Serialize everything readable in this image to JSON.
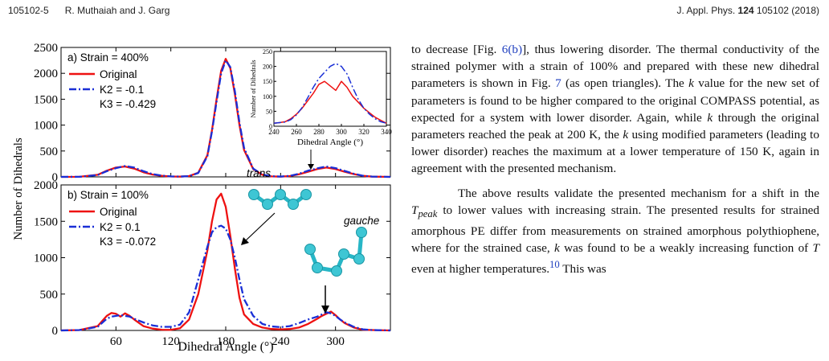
{
  "header": {
    "page_id": "105102-5",
    "authors": "R. Muthaiah and J. Garg",
    "journal": "J. Appl. Phys.",
    "volume": "124",
    "pages": "105102 (2018)"
  },
  "figure": {
    "shared_ylabel": "Number of Dihedrals",
    "shared_xlabel": "Dihedral Angle (°)",
    "x_ticks": [
      60,
      120,
      180,
      240,
      300
    ],
    "xlim": [
      0,
      360
    ]
  },
  "chart_data": [
    {
      "type": "line",
      "panel_label": "a) Strain = 400%",
      "ylim": [
        0,
        2500
      ],
      "yticks": [
        0,
        500,
        1000,
        1500,
        2000,
        2500
      ],
      "legend": {
        "placement": "top-left",
        "entries": [
          "Original",
          "K2 = -0.1",
          "K3 = -0.429"
        ]
      },
      "x": [
        0,
        20,
        40,
        50,
        60,
        70,
        80,
        90,
        100,
        110,
        120,
        130,
        140,
        150,
        160,
        165,
        170,
        175,
        180,
        185,
        190,
        195,
        200,
        210,
        220,
        230,
        240,
        250,
        260,
        270,
        280,
        290,
        300,
        310,
        320,
        330,
        340,
        360
      ],
      "series": [
        {
          "name": "Original",
          "color": "#ee1111",
          "dash": "solid",
          "values": [
            0,
            2,
            40,
            120,
            180,
            200,
            160,
            90,
            45,
            20,
            8,
            5,
            15,
            80,
            420,
            900,
            1500,
            2050,
            2280,
            2100,
            1600,
            1000,
            520,
            150,
            40,
            10,
            5,
            15,
            50,
            100,
            150,
            180,
            150,
            100,
            55,
            20,
            5,
            0
          ]
        },
        {
          "name": "K2 = -0.1",
          "color": "#1a2fd6",
          "dash": "dashdot",
          "values": [
            0,
            2,
            35,
            110,
            170,
            210,
            180,
            110,
            55,
            25,
            10,
            6,
            14,
            75,
            400,
            880,
            1450,
            2000,
            2250,
            2120,
            1650,
            1050,
            560,
            160,
            45,
            12,
            6,
            18,
            60,
            120,
            165,
            200,
            170,
            115,
            60,
            22,
            6,
            0
          ]
        }
      ]
    },
    {
      "type": "line",
      "role": "inset",
      "xlim": [
        240,
        340
      ],
      "x_ticks": [
        240,
        260,
        280,
        300,
        320,
        340
      ],
      "ylim": [
        0,
        250
      ],
      "yticks": [
        0,
        50,
        100,
        150,
        200,
        250
      ],
      "ylabel": "Number of Dihedrals",
      "xlabel": "Dihedral Angle (°)",
      "x": [
        240,
        245,
        250,
        255,
        260,
        265,
        270,
        275,
        280,
        285,
        290,
        295,
        300,
        305,
        310,
        315,
        320,
        325,
        330,
        335,
        340
      ],
      "series": [
        {
          "name": "Original",
          "color": "#ee1111",
          "dash": "solid",
          "values": [
            10,
            12,
            15,
            25,
            40,
            60,
            85,
            110,
            140,
            150,
            135,
            120,
            150,
            130,
            100,
            80,
            60,
            45,
            30,
            20,
            10
          ]
        },
        {
          "name": "K2 = -0.1",
          "color": "#1a2fd6",
          "dash": "dashdot",
          "values": [
            10,
            12,
            14,
            22,
            38,
            62,
            95,
            130,
            160,
            180,
            200,
            210,
            200,
            175,
            130,
            90,
            60,
            40,
            25,
            15,
            10
          ]
        }
      ]
    },
    {
      "type": "line",
      "panel_label": "b) Strain = 100%",
      "ylim": [
        0,
        2000
      ],
      "yticks": [
        0,
        500,
        1000,
        1500,
        2000
      ],
      "legend": {
        "placement": "top-left",
        "entries": [
          "Original",
          "K2 = 0.1",
          "K3 = -0.072"
        ]
      },
      "annotations": [
        "trans",
        "gauche"
      ],
      "x": [
        0,
        20,
        40,
        50,
        55,
        60,
        65,
        70,
        75,
        80,
        90,
        100,
        110,
        120,
        130,
        140,
        150,
        160,
        165,
        170,
        175,
        180,
        185,
        190,
        195,
        200,
        210,
        220,
        230,
        240,
        250,
        260,
        270,
        280,
        285,
        290,
        295,
        300,
        305,
        310,
        320,
        330,
        340,
        360
      ],
      "series": [
        {
          "name": "Original",
          "color": "#ee1111",
          "dash": "solid",
          "values": [
            0,
            5,
            60,
            200,
            240,
            230,
            190,
            235,
            200,
            150,
            60,
            25,
            10,
            8,
            30,
            150,
            500,
            1100,
            1500,
            1800,
            1880,
            1700,
            1300,
            850,
            450,
            220,
            90,
            40,
            20,
            15,
            20,
            40,
            90,
            160,
            200,
            230,
            260,
            210,
            150,
            100,
            40,
            10,
            5,
            0
          ]
        },
        {
          "name": "K2 = 0.1",
          "color": "#1a2fd6",
          "dash": "dashdot",
          "values": [
            0,
            5,
            50,
            160,
            190,
            200,
            210,
            200,
            190,
            160,
            110,
            70,
            50,
            50,
            80,
            250,
            700,
            1150,
            1350,
            1420,
            1440,
            1400,
            1250,
            1000,
            700,
            430,
            200,
            90,
            55,
            45,
            60,
            100,
            150,
            190,
            220,
            250,
            235,
            200,
            150,
            110,
            50,
            15,
            5,
            0
          ]
        }
      ]
    }
  ],
  "article": {
    "p1": [
      {
        "t": "to decrease [Fig. "
      },
      {
        "t": "6(b)",
        "ref": true
      },
      {
        "t": "], thus lowering disorder. The thermal conductivity of the strained polymer with a strain of 100% and prepared with these new dihedral parameters is shown in Fig. "
      },
      {
        "t": "7",
        "ref": true
      },
      {
        "t": " (as open triangles). The "
      },
      {
        "t": "k",
        "i": true
      },
      {
        "t": " value for the new set of parameters is found to be higher compared to the original COMPASS potential, as expected for a system with lower disorder. Again, while "
      },
      {
        "t": "k",
        "i": true
      },
      {
        "t": " through the original parameters reached the peak at 200 K, the "
      },
      {
        "t": "k",
        "i": true
      },
      {
        "t": " using modified parameters (leading to lower disorder) reaches the maximum at a lower temperature of 150 K, again in agreement with the presented mechanism."
      }
    ],
    "p2": [
      {
        "t": "The above results validate the presented mechanism for a shift in the "
      },
      {
        "t": "T",
        "i": true
      },
      {
        "t": "peak",
        "i": true,
        "sub": true
      },
      {
        "t": " to lower values with increasing strain. The presented results for strained amorphous PE differ from measurements on strained amorphous polythiophene, where for the strained case, "
      },
      {
        "t": "k",
        "i": true
      },
      {
        "t": " was found to be a weakly increasing function of "
      },
      {
        "t": "T",
        "i": true
      },
      {
        "t": " even at higher temperatures."
      },
      {
        "t": "10",
        "ref": true,
        "sup": true
      },
      {
        "t": " This was"
      }
    ]
  }
}
